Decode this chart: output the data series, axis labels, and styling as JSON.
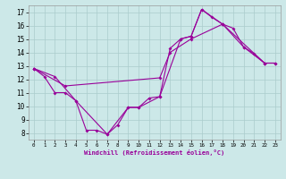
{
  "line1_pts": [
    [
      0,
      12.8
    ],
    [
      1,
      12.2
    ],
    [
      2,
      11.0
    ],
    [
      3,
      11.0
    ],
    [
      4,
      10.4
    ],
    [
      5,
      8.2
    ],
    [
      6,
      8.2
    ],
    [
      7,
      7.9
    ],
    [
      8,
      8.6
    ],
    [
      9,
      9.9
    ],
    [
      10,
      9.9
    ],
    [
      11,
      10.6
    ],
    [
      12,
      10.7
    ],
    [
      13,
      14.3
    ],
    [
      14,
      15.0
    ],
    [
      15,
      15.2
    ],
    [
      16,
      17.2
    ],
    [
      17,
      16.6
    ],
    [
      18,
      16.1
    ],
    [
      19,
      15.8
    ],
    [
      20,
      14.4
    ],
    [
      21,
      13.9
    ],
    [
      22,
      13.2
    ]
  ],
  "line2_pts": [
    [
      0,
      12.8
    ],
    [
      3,
      11.5
    ],
    [
      12,
      12.1
    ],
    [
      13,
      14.0
    ],
    [
      15,
      15.0
    ],
    [
      18,
      16.1
    ],
    [
      22,
      13.2
    ],
    [
      23,
      13.2
    ]
  ],
  "line3_pts": [
    [
      0,
      12.8
    ],
    [
      2,
      12.2
    ],
    [
      4,
      10.4
    ],
    [
      7,
      7.9
    ],
    [
      9,
      9.9
    ],
    [
      10,
      9.9
    ],
    [
      12,
      10.7
    ],
    [
      14,
      15.0
    ],
    [
      15,
      15.2
    ],
    [
      16,
      17.2
    ],
    [
      18,
      16.1
    ],
    [
      20,
      14.4
    ],
    [
      22,
      13.2
    ],
    [
      23,
      13.2
    ]
  ],
  "color": "#990099",
  "bg_color": "#cce8e8",
  "grid_color": "#aacccc",
  "xlabel": "Windchill (Refroidissement éolien,°C)",
  "xlim": [
    -0.5,
    23.5
  ],
  "ylim": [
    7.5,
    17.5
  ],
  "xticks": [
    0,
    1,
    2,
    3,
    4,
    5,
    6,
    7,
    8,
    9,
    10,
    11,
    12,
    13,
    14,
    15,
    16,
    17,
    18,
    19,
    20,
    21,
    22,
    23
  ],
  "yticks": [
    8,
    9,
    10,
    11,
    12,
    13,
    14,
    15,
    16,
    17
  ]
}
